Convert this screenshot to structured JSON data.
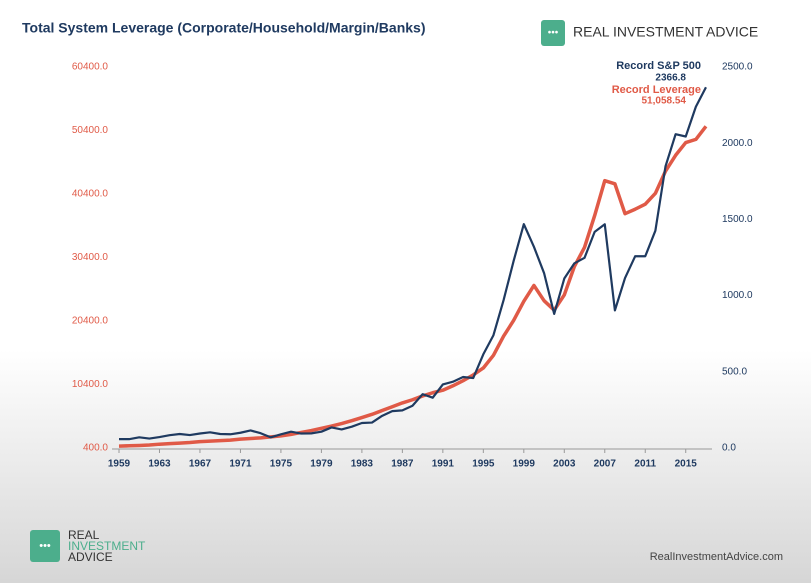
{
  "chart_data": {
    "type": "line",
    "title": "Total System Leverage (Corporate/Household/Margin/Banks)",
    "x": [
      1959,
      1960,
      1961,
      1962,
      1963,
      1964,
      1965,
      1966,
      1967,
      1968,
      1969,
      1970,
      1971,
      1972,
      1973,
      1974,
      1975,
      1976,
      1977,
      1978,
      1979,
      1980,
      1981,
      1982,
      1983,
      1984,
      1985,
      1986,
      1987,
      1988,
      1989,
      1990,
      1991,
      1992,
      1993,
      1994,
      1995,
      1996,
      1997,
      1998,
      1999,
      2000,
      2001,
      2002,
      2003,
      2004,
      2005,
      2006,
      2007,
      2008,
      2009,
      2010,
      2011,
      2012,
      2013,
      2014,
      2015,
      2016,
      2017
    ],
    "xlim": [
      1959,
      2017.2
    ],
    "xticks": [
      1959,
      1963,
      1967,
      1971,
      1975,
      1979,
      1983,
      1987,
      1991,
      1995,
      1999,
      2003,
      2007,
      2011,
      2015
    ],
    "ylim": [
      400,
      60400
    ],
    "yticks": [
      {
        "value": 400,
        "label": "400.0"
      },
      {
        "value": 10400,
        "label": "10400.0"
      },
      {
        "value": 20400,
        "label": "20400.0"
      },
      {
        "value": 30400,
        "label": "30400.0"
      },
      {
        "value": 40400,
        "label": "40400.0"
      },
      {
        "value": 50400,
        "label": "50400.0"
      },
      {
        "value": 60400,
        "label": "60400.0"
      }
    ],
    "y2lim": [
      0,
      2500
    ],
    "y2ticks": [
      {
        "value": 0,
        "label": "0.0"
      },
      {
        "value": 500,
        "label": "500.0"
      },
      {
        "value": 1000,
        "label": "1000.0"
      },
      {
        "value": 1500,
        "label": "1500.0"
      },
      {
        "value": 2000,
        "label": "2000.0"
      },
      {
        "value": 2500,
        "label": "2500.0"
      }
    ],
    "series": [
      {
        "name": "Record Leverage",
        "color": "#e05a47",
        "axis": "y",
        "values": [
          700,
          750,
          800,
          880,
          1000,
          1080,
          1160,
          1260,
          1400,
          1480,
          1560,
          1640,
          1800,
          1900,
          2000,
          2150,
          2300,
          2550,
          2850,
          3150,
          3500,
          3850,
          4250,
          4700,
          5200,
          5700,
          6300,
          6900,
          7500,
          8000,
          8600,
          9100,
          9500,
          10200,
          11000,
          11900,
          13000,
          15000,
          18000,
          20500,
          23500,
          26000,
          23600,
          22100,
          24500,
          29000,
          32000,
          37000,
          42500,
          42000,
          37300,
          38000,
          38800,
          40500,
          44000,
          46500,
          48500,
          49000,
          51058.54
        ]
      },
      {
        "name": "Record S&P 500",
        "color": "#1f3a60",
        "axis": "y2",
        "values": [
          58,
          58,
          70,
          62,
          72,
          84,
          92,
          85,
          95,
          103,
          92,
          90,
          100,
          115,
          97,
          70,
          90,
          107,
          95,
          96,
          107,
          135,
          122,
          140,
          164,
          167,
          211,
          242,
          247,
          277,
          353,
          330,
          417,
          435,
          466,
          459,
          615,
          740,
          970,
          1229,
          1469,
          1320,
          1148,
          880,
          1112,
          1212,
          1248,
          1418,
          1468,
          903,
          1115,
          1258,
          1258,
          1426,
          1848,
          2059,
          2044,
          2239,
          2366.8
        ]
      }
    ],
    "annotations": [
      {
        "text": "Record S&P 500",
        "value_label": "2366.8"
      },
      {
        "text": "Record Leverage",
        "value_label": "51,058.54"
      }
    ]
  },
  "brand": {
    "top": "REAL INVESTMENT ADVICE",
    "bottom": [
      "REAL",
      "INVESTMENT",
      "ADVICE"
    ],
    "url": "RealInvestmentAdvice.com"
  }
}
